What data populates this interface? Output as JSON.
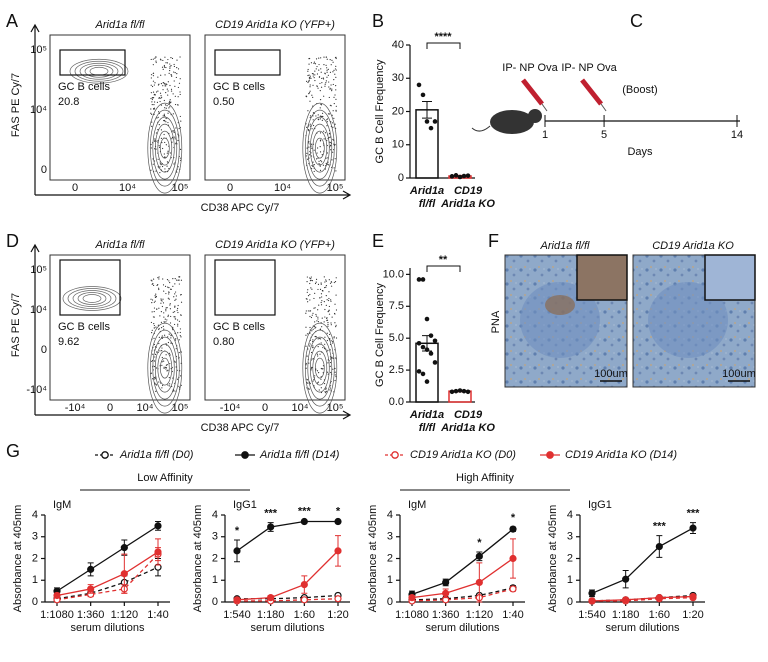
{
  "A": {
    "letter": "A",
    "ylabel": "FAS PE Cy/7",
    "xlabel": "CD38 APC Cy/7",
    "yticks": [
      "10⁵",
      "10⁴",
      "0"
    ],
    "xticks": [
      "0",
      "10⁴",
      "10⁵"
    ],
    "plots": [
      {
        "title": "Arid1a fl/fl",
        "gate": "GC B cells",
        "pct": "20.8"
      },
      {
        "title": "CD19 Arid1a KO (YFP+)",
        "gate": "GC B cells",
        "pct": "0.50"
      }
    ]
  },
  "B": {
    "letter": "B",
    "ylabel": "GC B Cell Frequency",
    "ylim": [
      0,
      40
    ],
    "yticks": [
      0,
      10,
      20,
      30,
      40
    ],
    "categories": [
      [
        "Arid1a",
        "fl/fl"
      ],
      [
        "CD19",
        "Arid1a KO"
      ]
    ],
    "values": [
      20.5,
      0.6
    ],
    "errors": [
      2.5,
      0.2
    ],
    "points": [
      [
        28,
        25,
        17,
        15,
        17
      ],
      [
        0.5,
        0.8,
        0.3,
        0.6,
        0.7
      ]
    ],
    "colors": [
      "#111111",
      "#e03030"
    ],
    "significance": "****"
  },
  "C": {
    "letter": "C",
    "injections": [
      "IP- NP Ova",
      "IP- NP Ova"
    ],
    "boost": "(Boost)",
    "days": [
      1,
      5,
      14
    ],
    "xlabel": "Days"
  },
  "D": {
    "letter": "D",
    "ylabel": "FAS PE Cy/7",
    "xlabel": "CD38 APC Cy/7",
    "yticks": [
      "10⁵",
      "10⁴",
      "0",
      "-10⁴"
    ],
    "xticks": [
      "-10⁴",
      "0",
      "10⁴",
      "10⁵"
    ],
    "plots": [
      {
        "title": "Arid1a fl/fl",
        "gate": "GC B cells",
        "pct": "9.62"
      },
      {
        "title": "CD19 Arid1a KO (YFP+)",
        "gate": "GC B cells",
        "pct": "0.80"
      }
    ]
  },
  "E": {
    "letter": "E",
    "ylabel": "GC B Cell Frequency",
    "ylim": [
      0,
      10.5
    ],
    "yticks": [
      {
        "value": 0,
        "label": "0.0"
      },
      {
        "value": 2.5,
        "label": "2.5"
      },
      {
        "value": 5,
        "label": "5.0"
      },
      {
        "value": 7.5,
        "label": "7.5"
      },
      {
        "value": 10,
        "label": "10.0"
      }
    ],
    "categories": [
      [
        "Arid1a",
        "fl/fl"
      ],
      [
        "CD19",
        "Arid1a KO"
      ]
    ],
    "values": [
      4.6,
      0.85
    ],
    "errors": [
      0.6,
      0.05
    ],
    "points": [
      [
        9.6,
        9.6,
        6.5,
        5.2,
        4.8,
        4.6,
        4.3,
        4.1,
        3.8,
        3.1,
        2.4,
        2.2,
        1.6
      ],
      [
        0.8,
        0.85,
        0.9,
        0.85,
        0.8
      ]
    ],
    "colors": [
      "#111111",
      "#e03030"
    ],
    "significance": "**"
  },
  "F": {
    "letter": "F",
    "stain": "PNA",
    "titles": [
      "Arid1a fl/fl",
      "CD19 Arid1a KO"
    ],
    "scale": [
      "100um",
      "100um"
    ]
  },
  "G": {
    "letter": "G",
    "groups": [
      "Low Affinity",
      "High Affinity"
    ],
    "ylabel": "Absorbance at 405nm",
    "xlabel": "serum dilutions",
    "ylim": [
      0,
      4
    ],
    "yticks": [
      0,
      1,
      2,
      3,
      4
    ],
    "legend": [
      "Arid1a fl/fl (D0)",
      "Arid1a fl/fl (D14)",
      "CD19 Arid1a KO (D0)",
      "CD19 Arid1a KO (D14)"
    ],
    "styles": [
      {
        "color": "#111111",
        "dashed": true
      },
      {
        "color": "#111111",
        "dashed": false
      },
      {
        "color": "#e03030",
        "dashed": true
      },
      {
        "color": "#e03030",
        "dashed": false
      }
    ],
    "plots": [
      {
        "title": "IgM",
        "categories": [
          "1:1080",
          "1:360",
          "1:120",
          "1:40"
        ],
        "stars": [
          null,
          null,
          null,
          null
        ],
        "series": [
          {
            "values": [
              0.15,
              0.4,
              0.9,
              1.6
            ],
            "errors": [
              0.05,
              0.1,
              0.3,
              0.4
            ]
          },
          {
            "values": [
              0.5,
              1.5,
              2.5,
              3.5
            ],
            "errors": [
              0.15,
              0.3,
              0.35,
              0.2
            ]
          },
          {
            "values": [
              0.1,
              0.35,
              0.6,
              2.2
            ],
            "errors": [
              0.05,
              0.1,
              0.2,
              0.3
            ]
          },
          {
            "values": [
              0.3,
              0.6,
              1.3,
              2.3
            ],
            "errors": [
              0.1,
              0.2,
              0.9,
              0.6
            ]
          }
        ]
      },
      {
        "title": "IgG1",
        "categories": [
          "1:540",
          "1:180",
          "1:60",
          "1:20"
        ],
        "stars": [
          "*",
          "***",
          "***",
          "*"
        ],
        "series": [
          {
            "values": [
              0.15,
              0.15,
              0.2,
              0.3
            ],
            "errors": [
              0.05,
              0.05,
              0.05,
              0.05
            ]
          },
          {
            "values": [
              2.35,
              3.45,
              3.7,
              3.7
            ],
            "errors": [
              0.5,
              0.2,
              0.05,
              0.05
            ]
          },
          {
            "values": [
              0.05,
              0.05,
              0.1,
              0.15
            ],
            "errors": [
              0.03,
              0.03,
              0.03,
              0.05
            ]
          },
          {
            "values": [
              0.1,
              0.2,
              0.8,
              2.35
            ],
            "errors": [
              0.05,
              0.1,
              0.4,
              0.7
            ]
          }
        ]
      },
      {
        "title": "IgM",
        "categories": [
          "1:1080",
          "1:360",
          "1:120",
          "1:40"
        ],
        "stars": [
          null,
          null,
          "*",
          "*"
        ],
        "series": [
          {
            "values": [
              0.1,
              0.15,
              0.3,
              0.65
            ],
            "errors": [
              0.03,
              0.05,
              0.05,
              0.1
            ]
          },
          {
            "values": [
              0.35,
              0.9,
              2.1,
              3.35
            ],
            "errors": [
              0.15,
              0.15,
              0.2,
              0.1
            ]
          },
          {
            "values": [
              0.05,
              0.1,
              0.2,
              0.6
            ],
            "errors": [
              0.03,
              0.03,
              0.05,
              0.1
            ]
          },
          {
            "values": [
              0.2,
              0.4,
              0.9,
              2.0
            ],
            "errors": [
              0.1,
              0.2,
              0.9,
              0.9
            ]
          }
        ]
      },
      {
        "title": "IgG1",
        "categories": [
          "1:540",
          "1:180",
          "1:60",
          "1:20"
        ],
        "stars": [
          null,
          null,
          "***",
          "***"
        ],
        "series": [
          {
            "values": [
              0.05,
              0.1,
              0.2,
              0.3
            ],
            "errors": [
              0.03,
              0.03,
              0.05,
              0.05
            ]
          },
          {
            "values": [
              0.4,
              1.05,
              2.55,
              3.4
            ],
            "errors": [
              0.15,
              0.4,
              0.5,
              0.25
            ]
          },
          {
            "values": [
              0.05,
              0.05,
              0.15,
              0.2
            ],
            "errors": [
              0.03,
              0.03,
              0.03,
              0.05
            ]
          },
          {
            "values": [
              0.05,
              0.1,
              0.2,
              0.25
            ],
            "errors": [
              0.03,
              0.03,
              0.05,
              0.05
            ]
          }
        ]
      }
    ]
  }
}
